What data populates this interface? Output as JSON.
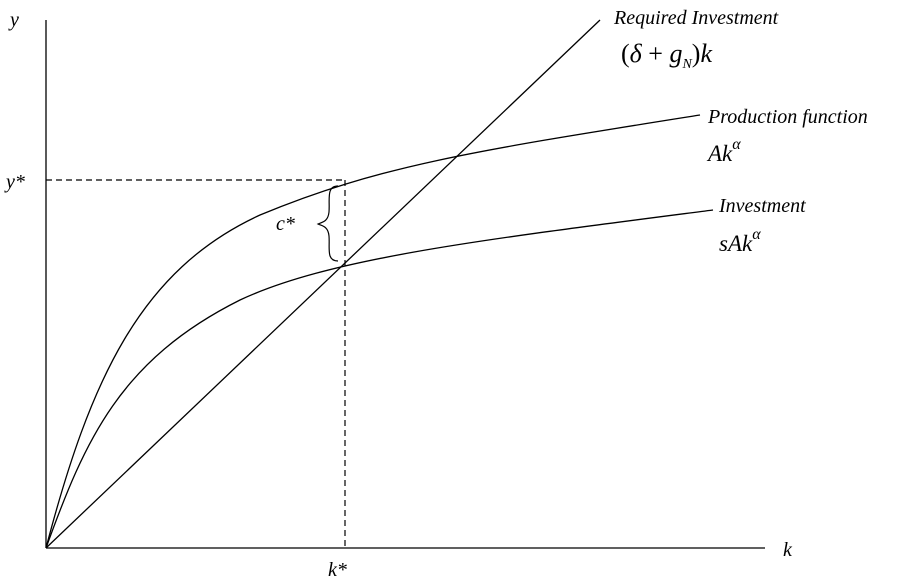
{
  "axes": {
    "x_label": "k",
    "y_label": "y",
    "x_tick": "k*",
    "y_tick": "y*"
  },
  "curves": {
    "required_investment": {
      "name": "Required Investment",
      "formula": "(δ + g_N)k"
    },
    "production": {
      "name": "Production function",
      "formula": "Ak^α"
    },
    "investment": {
      "name": "Investment",
      "formula": "sAk^α"
    }
  },
  "consumption_label": "c*",
  "colors": {
    "ink": "#000000",
    "background": "#ffffff"
  }
}
